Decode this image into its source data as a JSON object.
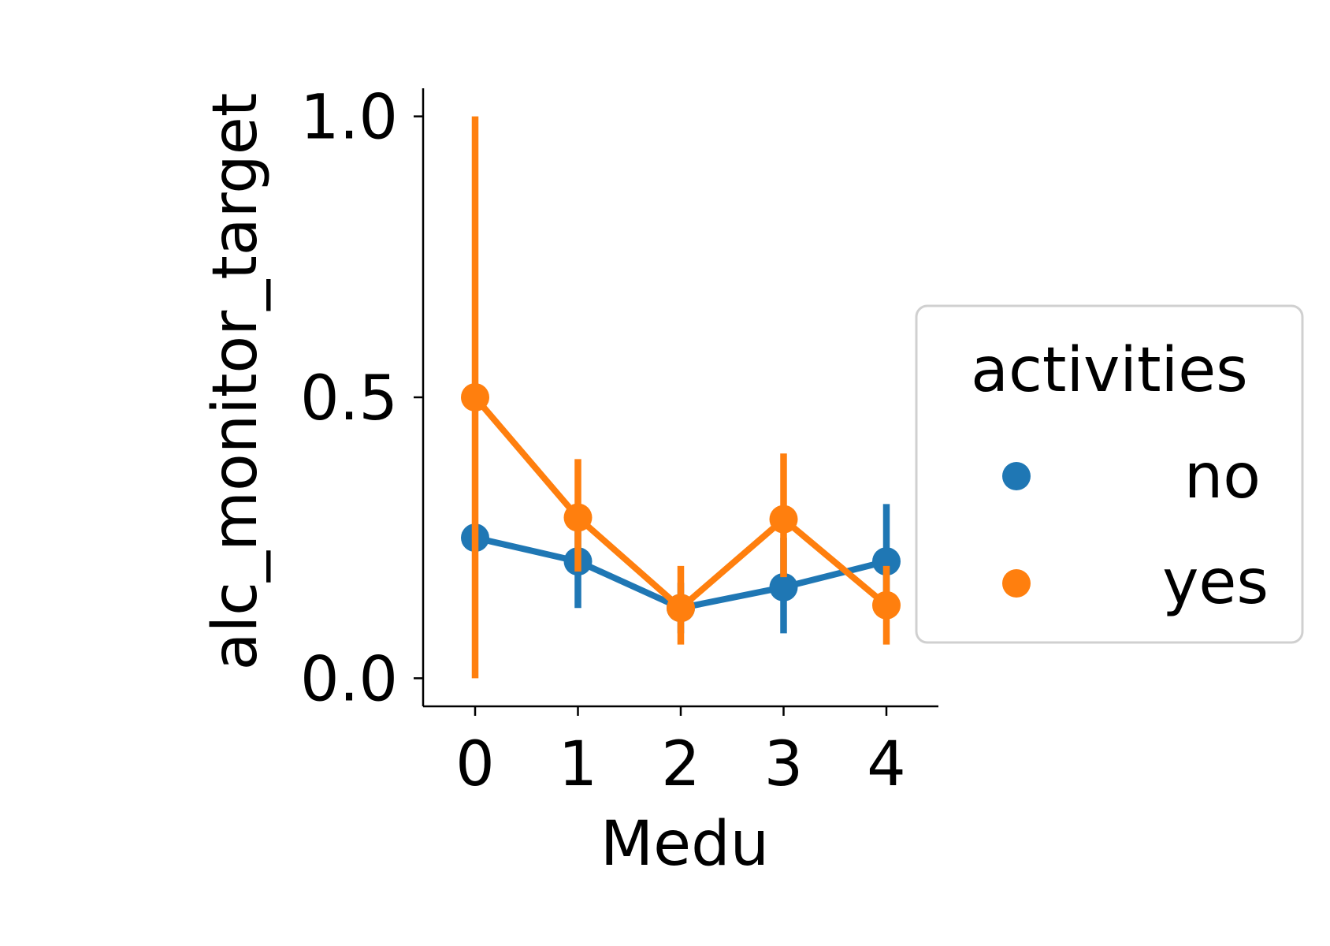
{
  "chart_data": {
    "type": "line",
    "xlabel": "Medu",
    "ylabel": "alc_monitor_target",
    "categories": [
      "0",
      "1",
      "2",
      "3",
      "4"
    ],
    "ylim": [
      -0.05,
      1.05
    ],
    "yticks": [
      "0.0",
      "0.5",
      "1.0"
    ],
    "yticks_values": [
      0.0,
      0.5,
      1.0
    ],
    "grid": false,
    "legend": {
      "title": "activities",
      "placement": "center-right outside",
      "entries": [
        "no",
        "yes"
      ]
    },
    "series": [
      {
        "name": "no",
        "color": "#1f77b4",
        "values": [
          0.25,
          0.208,
          0.125,
          0.162,
          0.208
        ],
        "ci_low": [
          0.25,
          0.125,
          0.08,
          0.08,
          0.15
        ],
        "ci_high": [
          0.25,
          0.27,
          0.17,
          0.25,
          0.31
        ]
      },
      {
        "name": "yes",
        "color": "#ff7f0e",
        "values": [
          0.5,
          0.286,
          0.125,
          0.283,
          0.13
        ],
        "ci_low": [
          0.0,
          0.19,
          0.06,
          0.18,
          0.06
        ],
        "ci_high": [
          1.0,
          0.39,
          0.2,
          0.4,
          0.2
        ]
      }
    ]
  }
}
